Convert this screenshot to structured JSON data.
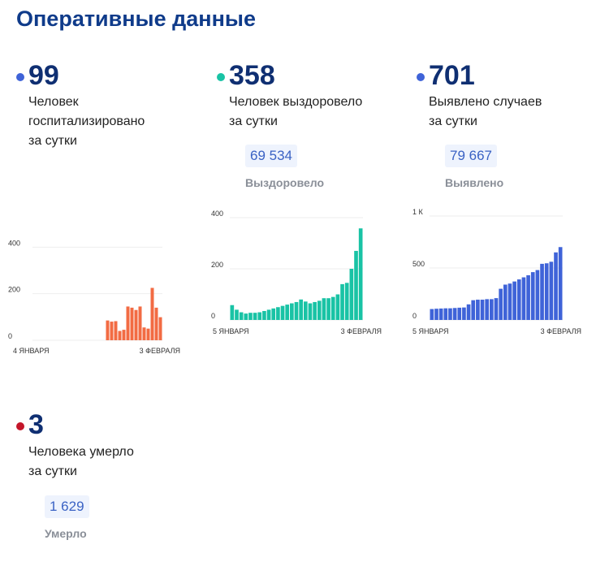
{
  "title": "Оперативные данные",
  "stats": {
    "hospitalized": {
      "value": "99",
      "line1": "Человек",
      "line2": "госпитализировано",
      "line3": "за сутки",
      "color": "#3f63d8"
    },
    "recovered": {
      "value": "358",
      "line1": "Человек выздоровело",
      "line2": "за сутки",
      "total": "69 534",
      "total_label": "Выздоровело",
      "color": "#19c3a5"
    },
    "cases": {
      "value": "701",
      "line1": "Выявлено случаев",
      "line2": "за сутки",
      "total": "79 667",
      "total_label": "Выявлено",
      "color": "#3f63d8"
    },
    "deaths": {
      "value": "3",
      "line1": "Человека умерло",
      "line2": "за сутки",
      "total": "1 629",
      "total_label": "Умерло",
      "color": "#c4162a"
    }
  },
  "chart_data": [
    {
      "id": "hospitalized",
      "type": "bar",
      "color": "#f26b43",
      "ylim": [
        0,
        450
      ],
      "yticks": [
        0,
        200,
        400
      ],
      "ytick_labels": [
        "0",
        "200",
        "400"
      ],
      "x_first_label": "4 ЯНВАРЯ",
      "x_last_label": "3 ФЕВРАЛЯ",
      "values": [
        0,
        0,
        0,
        0,
        0,
        0,
        0,
        0,
        0,
        0,
        0,
        0,
        0,
        0,
        0,
        0,
        0,
        0,
        85,
        80,
        82,
        40,
        45,
        145,
        140,
        130,
        145,
        55,
        50,
        225,
        140,
        99
      ]
    },
    {
      "id": "recovered",
      "type": "bar",
      "color": "#19c3a5",
      "ylim": [
        0,
        400
      ],
      "yticks": [
        0,
        200,
        400
      ],
      "ytick_labels": [
        "0",
        "200",
        "400"
      ],
      "x_first_label": "5 ЯНВАРЯ",
      "x_last_label": "3 ФЕВРАЛЯ",
      "values": [
        58,
        40,
        30,
        25,
        28,
        28,
        30,
        35,
        40,
        45,
        50,
        55,
        60,
        65,
        70,
        80,
        72,
        65,
        70,
        75,
        85,
        85,
        90,
        100,
        140,
        145,
        200,
        270,
        358
      ]
    },
    {
      "id": "cases",
      "type": "bar",
      "color": "#3f63d8",
      "ylim": [
        0,
        1000
      ],
      "yticks": [
        0,
        500,
        1000
      ],
      "ytick_labels": [
        "0",
        "500",
        "1 К"
      ],
      "x_first_label": "5 ЯНВАРЯ",
      "x_last_label": "3 ФЕВРАЛЯ",
      "values": [
        105,
        108,
        110,
        112,
        112,
        115,
        118,
        120,
        150,
        190,
        195,
        195,
        200,
        200,
        210,
        300,
        340,
        350,
        370,
        390,
        410,
        430,
        460,
        480,
        540,
        545,
        560,
        650,
        701
      ]
    }
  ]
}
